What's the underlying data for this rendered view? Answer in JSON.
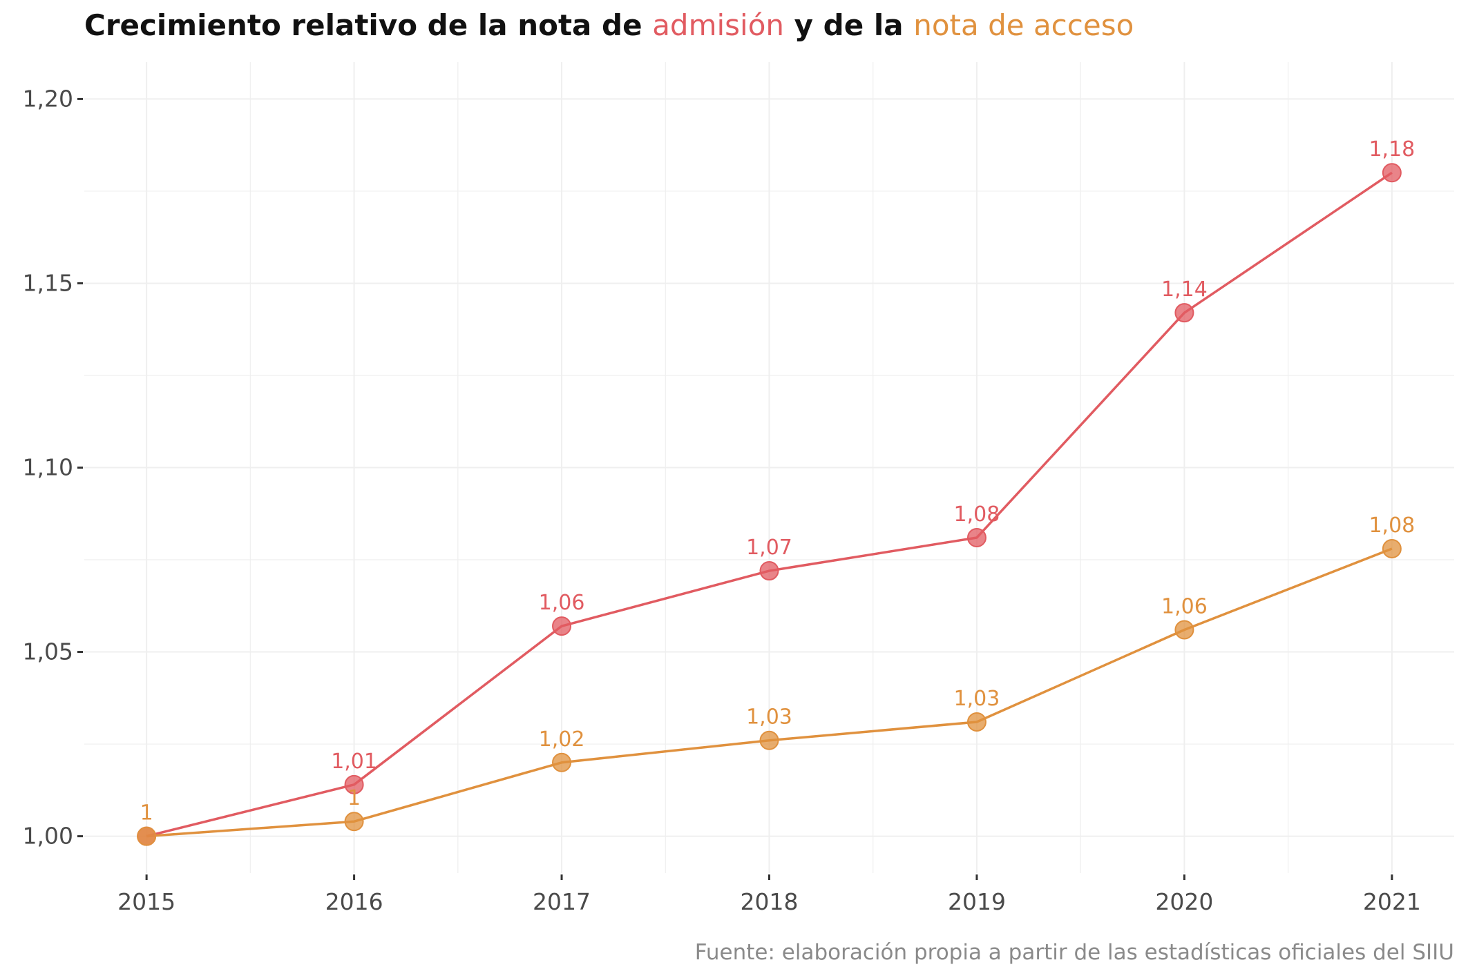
{
  "title": {
    "prefix": "Crecimiento relativo de la nota de",
    "highlight_1": "admisión",
    "middle": "y de la",
    "highlight_2": "nota de acceso"
  },
  "source": "Fuente: elaboración propia a partir de las estadísticas oficiales del SIIU",
  "colors": {
    "admision": "#e15b61",
    "acceso": "#e0913e",
    "grid": "#efefef"
  },
  "chart_data": {
    "type": "line",
    "x": [
      2015,
      2016,
      2017,
      2018,
      2019,
      2020,
      2021
    ],
    "x_tick_labels": [
      "2015",
      "2016",
      "2017",
      "2018",
      "2019",
      "2020",
      "2021"
    ],
    "y_tick_values": [
      1.0,
      1.05,
      1.1,
      1.15,
      1.2
    ],
    "y_tick_labels": [
      "1,00",
      "1,05",
      "1,10",
      "1,15",
      "1,20"
    ],
    "xlim": [
      2014.7,
      2021.3
    ],
    "ylim": [
      0.99,
      1.21
    ],
    "grid": true,
    "series": [
      {
        "name": "admisión",
        "color": "#e15b61",
        "values": [
          1.0,
          1.014,
          1.057,
          1.072,
          1.081,
          1.142,
          1.18
        ],
        "labels": [
          "",
          "1,01",
          "1,06",
          "1,07",
          "1,08",
          "1,14",
          "1,18"
        ]
      },
      {
        "name": "nota de acceso",
        "color": "#e0913e",
        "values": [
          1.0,
          1.004,
          1.02,
          1.026,
          1.031,
          1.056,
          1.078
        ],
        "labels": [
          "1",
          "1",
          "1,02",
          "1,03",
          "1,03",
          "1,06",
          "1,08"
        ]
      }
    ]
  }
}
